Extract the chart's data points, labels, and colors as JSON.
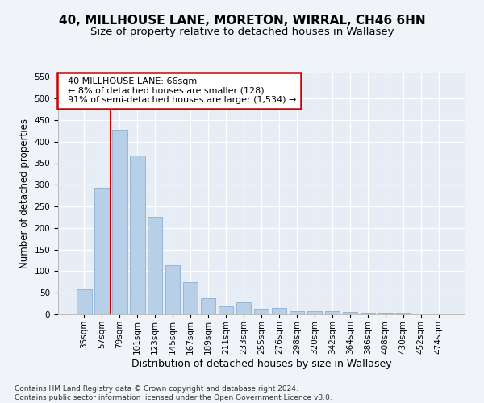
{
  "title1": "40, MILLHOUSE LANE, MORETON, WIRRAL, CH46 6HN",
  "title2": "Size of property relative to detached houses in Wallasey",
  "xlabel": "Distribution of detached houses by size in Wallasey",
  "ylabel": "Number of detached properties",
  "categories": [
    "35sqm",
    "57sqm",
    "79sqm",
    "101sqm",
    "123sqm",
    "145sqm",
    "167sqm",
    "189sqm",
    "211sqm",
    "233sqm",
    "255sqm",
    "276sqm",
    "298sqm",
    "320sqm",
    "342sqm",
    "364sqm",
    "386sqm",
    "408sqm",
    "430sqm",
    "452sqm",
    "474sqm"
  ],
  "values": [
    57,
    293,
    428,
    368,
    225,
    113,
    75,
    38,
    18,
    28,
    14,
    15,
    8,
    8,
    8,
    5,
    3,
    3,
    3,
    0,
    1
  ],
  "bar_color": "#b8cfe8",
  "bar_edge_color": "#8aafd0",
  "property_line_x": 1.5,
  "annotation_text": "  40 MILLHOUSE LANE: 66sqm\n  ← 8% of detached houses are smaller (128)\n  91% of semi-detached houses are larger (1,534) →",
  "annotation_box_color": "#ffffff",
  "annotation_box_edge_color": "#cc0000",
  "vline_color": "#cc0000",
  "ylim": [
    0,
    560
  ],
  "yticks": [
    0,
    50,
    100,
    150,
    200,
    250,
    300,
    350,
    400,
    450,
    500,
    550
  ],
  "footer1": "Contains HM Land Registry data © Crown copyright and database right 2024.",
  "footer2": "Contains public sector information licensed under the Open Government Licence v3.0.",
  "bg_color": "#f0f4f8",
  "plot_bg_color": "#e6edf5",
  "title1_fontsize": 11,
  "title2_fontsize": 9.5,
  "xlabel_fontsize": 9,
  "ylabel_fontsize": 8.5,
  "tick_fontsize": 7.5,
  "annotation_fontsize": 8,
  "footer_fontsize": 6.5
}
